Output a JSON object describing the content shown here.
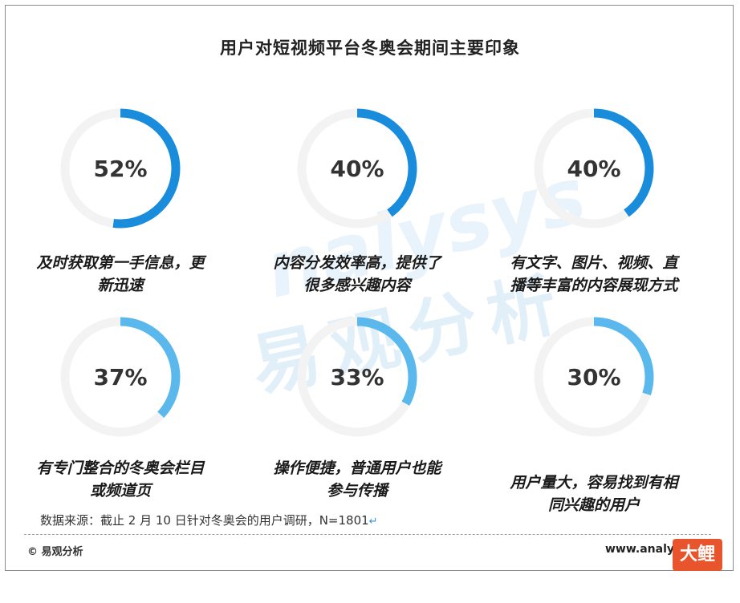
{
  "chart_data": {
    "type": "donut",
    "title": "用户对短视频平台冬奥会期间主要印象",
    "unit": "%",
    "colors": {
      "dark": "#1a8cdc",
      "light": "#5ab8ec",
      "track": "#f3f3f3"
    },
    "items": [
      {
        "value": 52,
        "label": "52%",
        "caption": [
          "及时获取第一手信息，更",
          "新迅速"
        ]
      },
      {
        "value": 40,
        "label": "40%",
        "caption": [
          "内容分发效率高，提供了",
          "很多感兴趣内容"
        ]
      },
      {
        "value": 40,
        "label": "40%",
        "caption": [
          "有文字、图片、视频、直",
          "播等丰富的内容展现方式"
        ]
      },
      {
        "value": 37,
        "label": "37%",
        "caption": [
          "有专门整合的冬奥会栏目",
          "或频道页"
        ]
      },
      {
        "value": 33,
        "label": "33%",
        "caption": [
          "操作便捷，普通用户也能",
          "参与传播"
        ]
      },
      {
        "value": 30,
        "label": "30%",
        "caption": [
          "用户量大，容易找到有相",
          "同兴趣的用户"
        ]
      }
    ]
  },
  "watermark": {
    "cn": "易观分析",
    "en": "nalysys"
  },
  "source": "数据来源：截止 2 月 10 日针对冬奥会的用户调研，N=1801",
  "source_mark": "↵",
  "footer": {
    "left": "© 易观分析",
    "right": "www.analysys.cn",
    "badge": "大鲤鱼"
  }
}
